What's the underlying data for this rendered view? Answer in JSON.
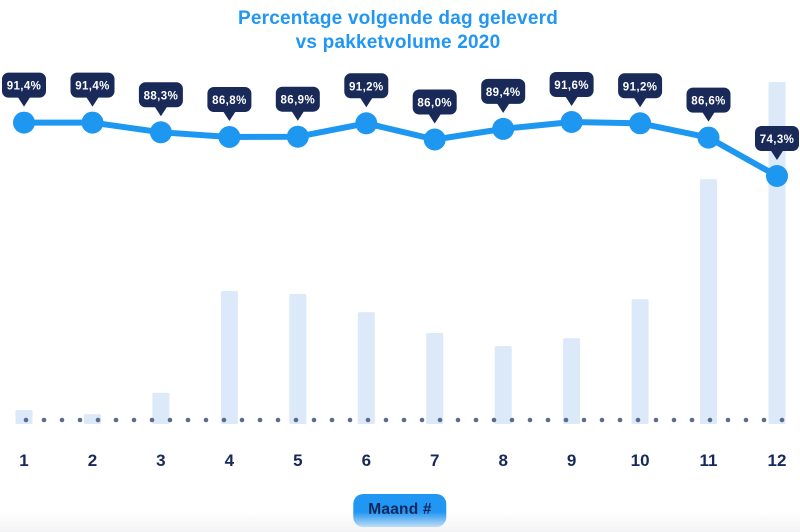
{
  "title": {
    "line1": "Percentage volgende dag geleverd",
    "line2": "vs pakketvolume 2020"
  },
  "colors": {
    "title": "#2196F3",
    "line": "#1E97F1",
    "point": "#1E97F1",
    "tooltip_bg": "#192A58",
    "tooltip_text": "#FFFFFF",
    "bar": "#DBE9F8",
    "baseline_dot": "#5A6B8F",
    "axis_label": "#16295B",
    "xlabel_pill_bg": "#2196F3",
    "xlabel_pill_text": "#12265A"
  },
  "chart_data": {
    "type": "combo",
    "title": "Percentage volgende dag geleverd vs pakketvolume 2020",
    "categories": [
      "1",
      "2",
      "3",
      "4",
      "5",
      "6",
      "7",
      "8",
      "9",
      "10",
      "11",
      "12"
    ],
    "xlabel": "Maand #",
    "legend": false,
    "grid": false,
    "series": [
      {
        "name": "Percentage volgende dag geleverd",
        "type": "line",
        "values": [
          91.4,
          91.4,
          88.3,
          86.8,
          86.9,
          91.2,
          86.0,
          89.4,
          91.6,
          91.2,
          86.6,
          74.3
        ],
        "labels": [
          "91,4%",
          "91,4%",
          "88,3%",
          "86,8%",
          "86,9%",
          "91,2%",
          "86,0%",
          "89,4%",
          "91,6%",
          "91,2%",
          "86,6%",
          "74,3%"
        ]
      },
      {
        "name": "Pakketvolume 2020",
        "type": "bar",
        "values_relative": [
          4.1,
          2.9,
          9.1,
          38.9,
          38.0,
          32.7,
          26.6,
          22.8,
          25.1,
          36.5,
          71.6,
          100
        ]
      }
    ]
  }
}
